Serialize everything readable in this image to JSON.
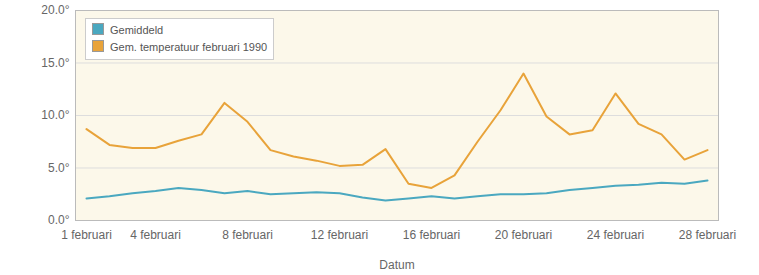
{
  "chart_data": {
    "type": "line",
    "x_label": "Datum",
    "categories": [
      "1 februari",
      null,
      null,
      "4 februari",
      null,
      null,
      null,
      "8 februari",
      null,
      null,
      null,
      "12 februari",
      null,
      null,
      null,
      "16 februari",
      null,
      null,
      null,
      "20 februari",
      null,
      null,
      null,
      "24 februari",
      null,
      null,
      null,
      "28 februari"
    ],
    "series": [
      {
        "name": "Gemiddeld",
        "color": "#4aa8c0",
        "values": [
          2.1,
          2.3,
          2.6,
          2.8,
          3.1,
          2.9,
          2.6,
          2.8,
          2.5,
          2.6,
          2.7,
          2.6,
          2.2,
          1.9,
          2.1,
          2.3,
          2.1,
          2.3,
          2.5,
          2.5,
          2.6,
          2.9,
          3.1,
          3.3,
          3.4,
          3.6,
          3.5,
          3.8
        ]
      },
      {
        "name": "Gem. temperatuur februari 1990",
        "color": "#e8a33a",
        "values": [
          8.7,
          7.2,
          6.9,
          6.9,
          7.6,
          8.2,
          11.2,
          9.4,
          6.7,
          6.1,
          5.7,
          5.2,
          5.3,
          6.8,
          3.5,
          3.1,
          4.3,
          7.5,
          10.5,
          14.0,
          9.9,
          8.2,
          8.6,
          12.1,
          9.2,
          8.2,
          5.8,
          6.7
        ]
      }
    ],
    "ylim": [
      0,
      20
    ],
    "yticks": [
      {
        "value": 0,
        "label": "0.0°"
      },
      {
        "value": 5,
        "label": "5.0°"
      },
      {
        "value": 10,
        "label": "10.0°"
      },
      {
        "value": 15,
        "label": "15.0°"
      },
      {
        "value": 20,
        "label": "20.0°"
      }
    ],
    "grid": true,
    "legend": "top-left"
  }
}
